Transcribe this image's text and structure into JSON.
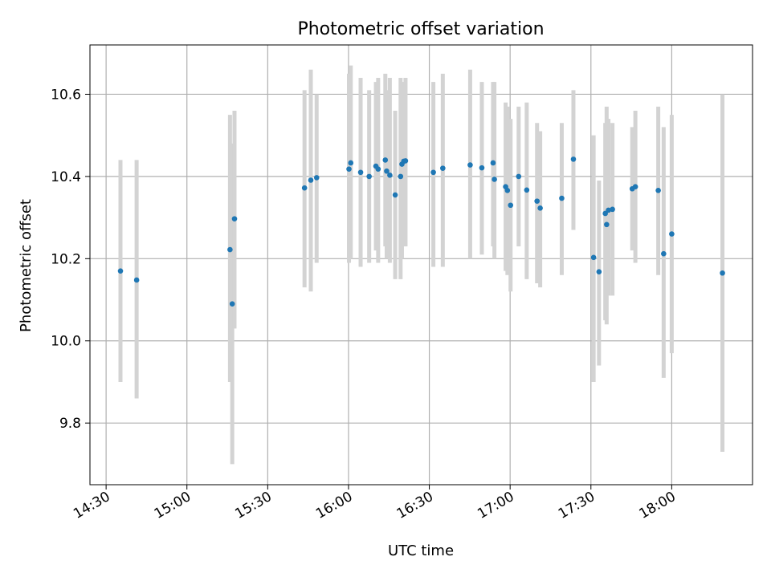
{
  "chart_data": {
    "type": "scatter",
    "title": "Photometric offset variation",
    "xlabel": "UTC time",
    "ylabel": "Photometric offset",
    "x_unit": "UTC time (HH:MM)",
    "xlim": [
      "14:24",
      "18:30"
    ],
    "ylim": [
      9.65,
      10.72
    ],
    "x_ticks": [
      "14:30",
      "15:00",
      "15:30",
      "16:00",
      "16:30",
      "17:00",
      "17:30",
      "18:00"
    ],
    "y_ticks": [
      "9.8",
      "10.0",
      "10.2",
      "10.4",
      "10.6"
    ],
    "grid": true,
    "colors": {
      "point": "#1f77b4",
      "errorbar": "#d3d3d3",
      "grid": "#b0b0b0"
    },
    "points": [
      {
        "x": "14:35:20",
        "y": 10.17,
        "ylow": 9.9,
        "yhigh": 10.44
      },
      {
        "x": "14:41:20",
        "y": 10.148,
        "ylow": 9.86,
        "yhigh": 10.44
      },
      {
        "x": "15:16:00",
        "y": 10.222,
        "ylow": 9.9,
        "yhigh": 10.55
      },
      {
        "x": "15:16:50",
        "y": 10.09,
        "ylow": 9.7,
        "yhigh": 10.48
      },
      {
        "x": "15:17:40",
        "y": 10.297,
        "ylow": 10.03,
        "yhigh": 10.56
      },
      {
        "x": "15:43:40",
        "y": 10.372,
        "ylow": 10.13,
        "yhigh": 10.61
      },
      {
        "x": "15:46:00",
        "y": 10.391,
        "ylow": 10.12,
        "yhigh": 10.66
      },
      {
        "x": "15:48:10",
        "y": 10.397,
        "ylow": 10.19,
        "yhigh": 10.6
      },
      {
        "x": "16:00:10",
        "y": 10.418,
        "ylow": 10.19,
        "yhigh": 10.65
      },
      {
        "x": "16:00:50",
        "y": 10.433,
        "ylow": 10.2,
        "yhigh": 10.67
      },
      {
        "x": "16:04:30",
        "y": 10.41,
        "ylow": 10.18,
        "yhigh": 10.64
      },
      {
        "x": "16:07:40",
        "y": 10.4,
        "ylow": 10.19,
        "yhigh": 10.61
      },
      {
        "x": "16:10:10",
        "y": 10.425,
        "ylow": 10.22,
        "yhigh": 10.63
      },
      {
        "x": "16:11:00",
        "y": 10.418,
        "ylow": 10.19,
        "yhigh": 10.64
      },
      {
        "x": "16:13:40",
        "y": 10.44,
        "ylow": 10.23,
        "yhigh": 10.65
      },
      {
        "x": "16:14:10",
        "y": 10.413,
        "ylow": 10.2,
        "yhigh": 10.61
      },
      {
        "x": "16:15:20",
        "y": 10.403,
        "ylow": 10.19,
        "yhigh": 10.64
      },
      {
        "x": "16:17:20",
        "y": 10.355,
        "ylow": 10.15,
        "yhigh": 10.56
      },
      {
        "x": "16:19:20",
        "y": 10.4,
        "ylow": 10.15,
        "yhigh": 10.64
      },
      {
        "x": "16:19:50",
        "y": 10.43,
        "ylow": 10.2,
        "yhigh": 10.63
      },
      {
        "x": "16:20:30",
        "y": 10.437,
        "ylow": 10.24,
        "yhigh": 10.63
      },
      {
        "x": "16:21:10",
        "y": 10.438,
        "ylow": 10.23,
        "yhigh": 10.64
      },
      {
        "x": "16:31:30",
        "y": 10.41,
        "ylow": 10.18,
        "yhigh": 10.63
      },
      {
        "x": "16:35:00",
        "y": 10.42,
        "ylow": 10.18,
        "yhigh": 10.65
      },
      {
        "x": "16:45:10",
        "y": 10.428,
        "ylow": 10.2,
        "yhigh": 10.66
      },
      {
        "x": "16:49:30",
        "y": 10.421,
        "ylow": 10.21,
        "yhigh": 10.63
      },
      {
        "x": "16:53:40",
        "y": 10.433,
        "ylow": 10.23,
        "yhigh": 10.63
      },
      {
        "x": "16:54:10",
        "y": 10.393,
        "ylow": 10.2,
        "yhigh": 10.63
      },
      {
        "x": "16:58:20",
        "y": 10.375,
        "ylow": 10.17,
        "yhigh": 10.58
      },
      {
        "x": "16:59:00",
        "y": 10.366,
        "ylow": 10.16,
        "yhigh": 10.57
      },
      {
        "x": "17:00:10",
        "y": 10.33,
        "ylow": 10.12,
        "yhigh": 10.54
      },
      {
        "x": "17:03:10",
        "y": 10.4,
        "ylow": 10.23,
        "yhigh": 10.57
      },
      {
        "x": "17:06:10",
        "y": 10.367,
        "ylow": 10.15,
        "yhigh": 10.58
      },
      {
        "x": "17:10:00",
        "y": 10.34,
        "ylow": 10.14,
        "yhigh": 10.53
      },
      {
        "x": "17:11:10",
        "y": 10.323,
        "ylow": 10.13,
        "yhigh": 10.51
      },
      {
        "x": "17:19:10",
        "y": 10.347,
        "ylow": 10.16,
        "yhigh": 10.53
      },
      {
        "x": "17:23:30",
        "y": 10.442,
        "ylow": 10.27,
        "yhigh": 10.61
      },
      {
        "x": "17:31:00",
        "y": 10.203,
        "ylow": 9.9,
        "yhigh": 10.5
      },
      {
        "x": "17:33:00",
        "y": 10.168,
        "ylow": 9.94,
        "yhigh": 10.39
      },
      {
        "x": "17:35:20",
        "y": 10.31,
        "ylow": 10.05,
        "yhigh": 10.53
      },
      {
        "x": "17:35:50",
        "y": 10.283,
        "ylow": 10.04,
        "yhigh": 10.57
      },
      {
        "x": "17:36:30",
        "y": 10.318,
        "ylow": 10.11,
        "yhigh": 10.54
      },
      {
        "x": "17:38:00",
        "y": 10.32,
        "ylow": 10.11,
        "yhigh": 10.53
      },
      {
        "x": "17:45:20",
        "y": 10.37,
        "ylow": 10.22,
        "yhigh": 10.52
      },
      {
        "x": "17:46:30",
        "y": 10.375,
        "ylow": 10.19,
        "yhigh": 10.56
      },
      {
        "x": "17:55:00",
        "y": 10.366,
        "ylow": 10.16,
        "yhigh": 10.57
      },
      {
        "x": "17:57:00",
        "y": 10.212,
        "ylow": 9.91,
        "yhigh": 10.52
      },
      {
        "x": "18:00:00",
        "y": 10.26,
        "ylow": 9.97,
        "yhigh": 10.55
      },
      {
        "x": "18:18:50",
        "y": 10.165,
        "ylow": 9.73,
        "yhigh": 10.6
      }
    ]
  }
}
